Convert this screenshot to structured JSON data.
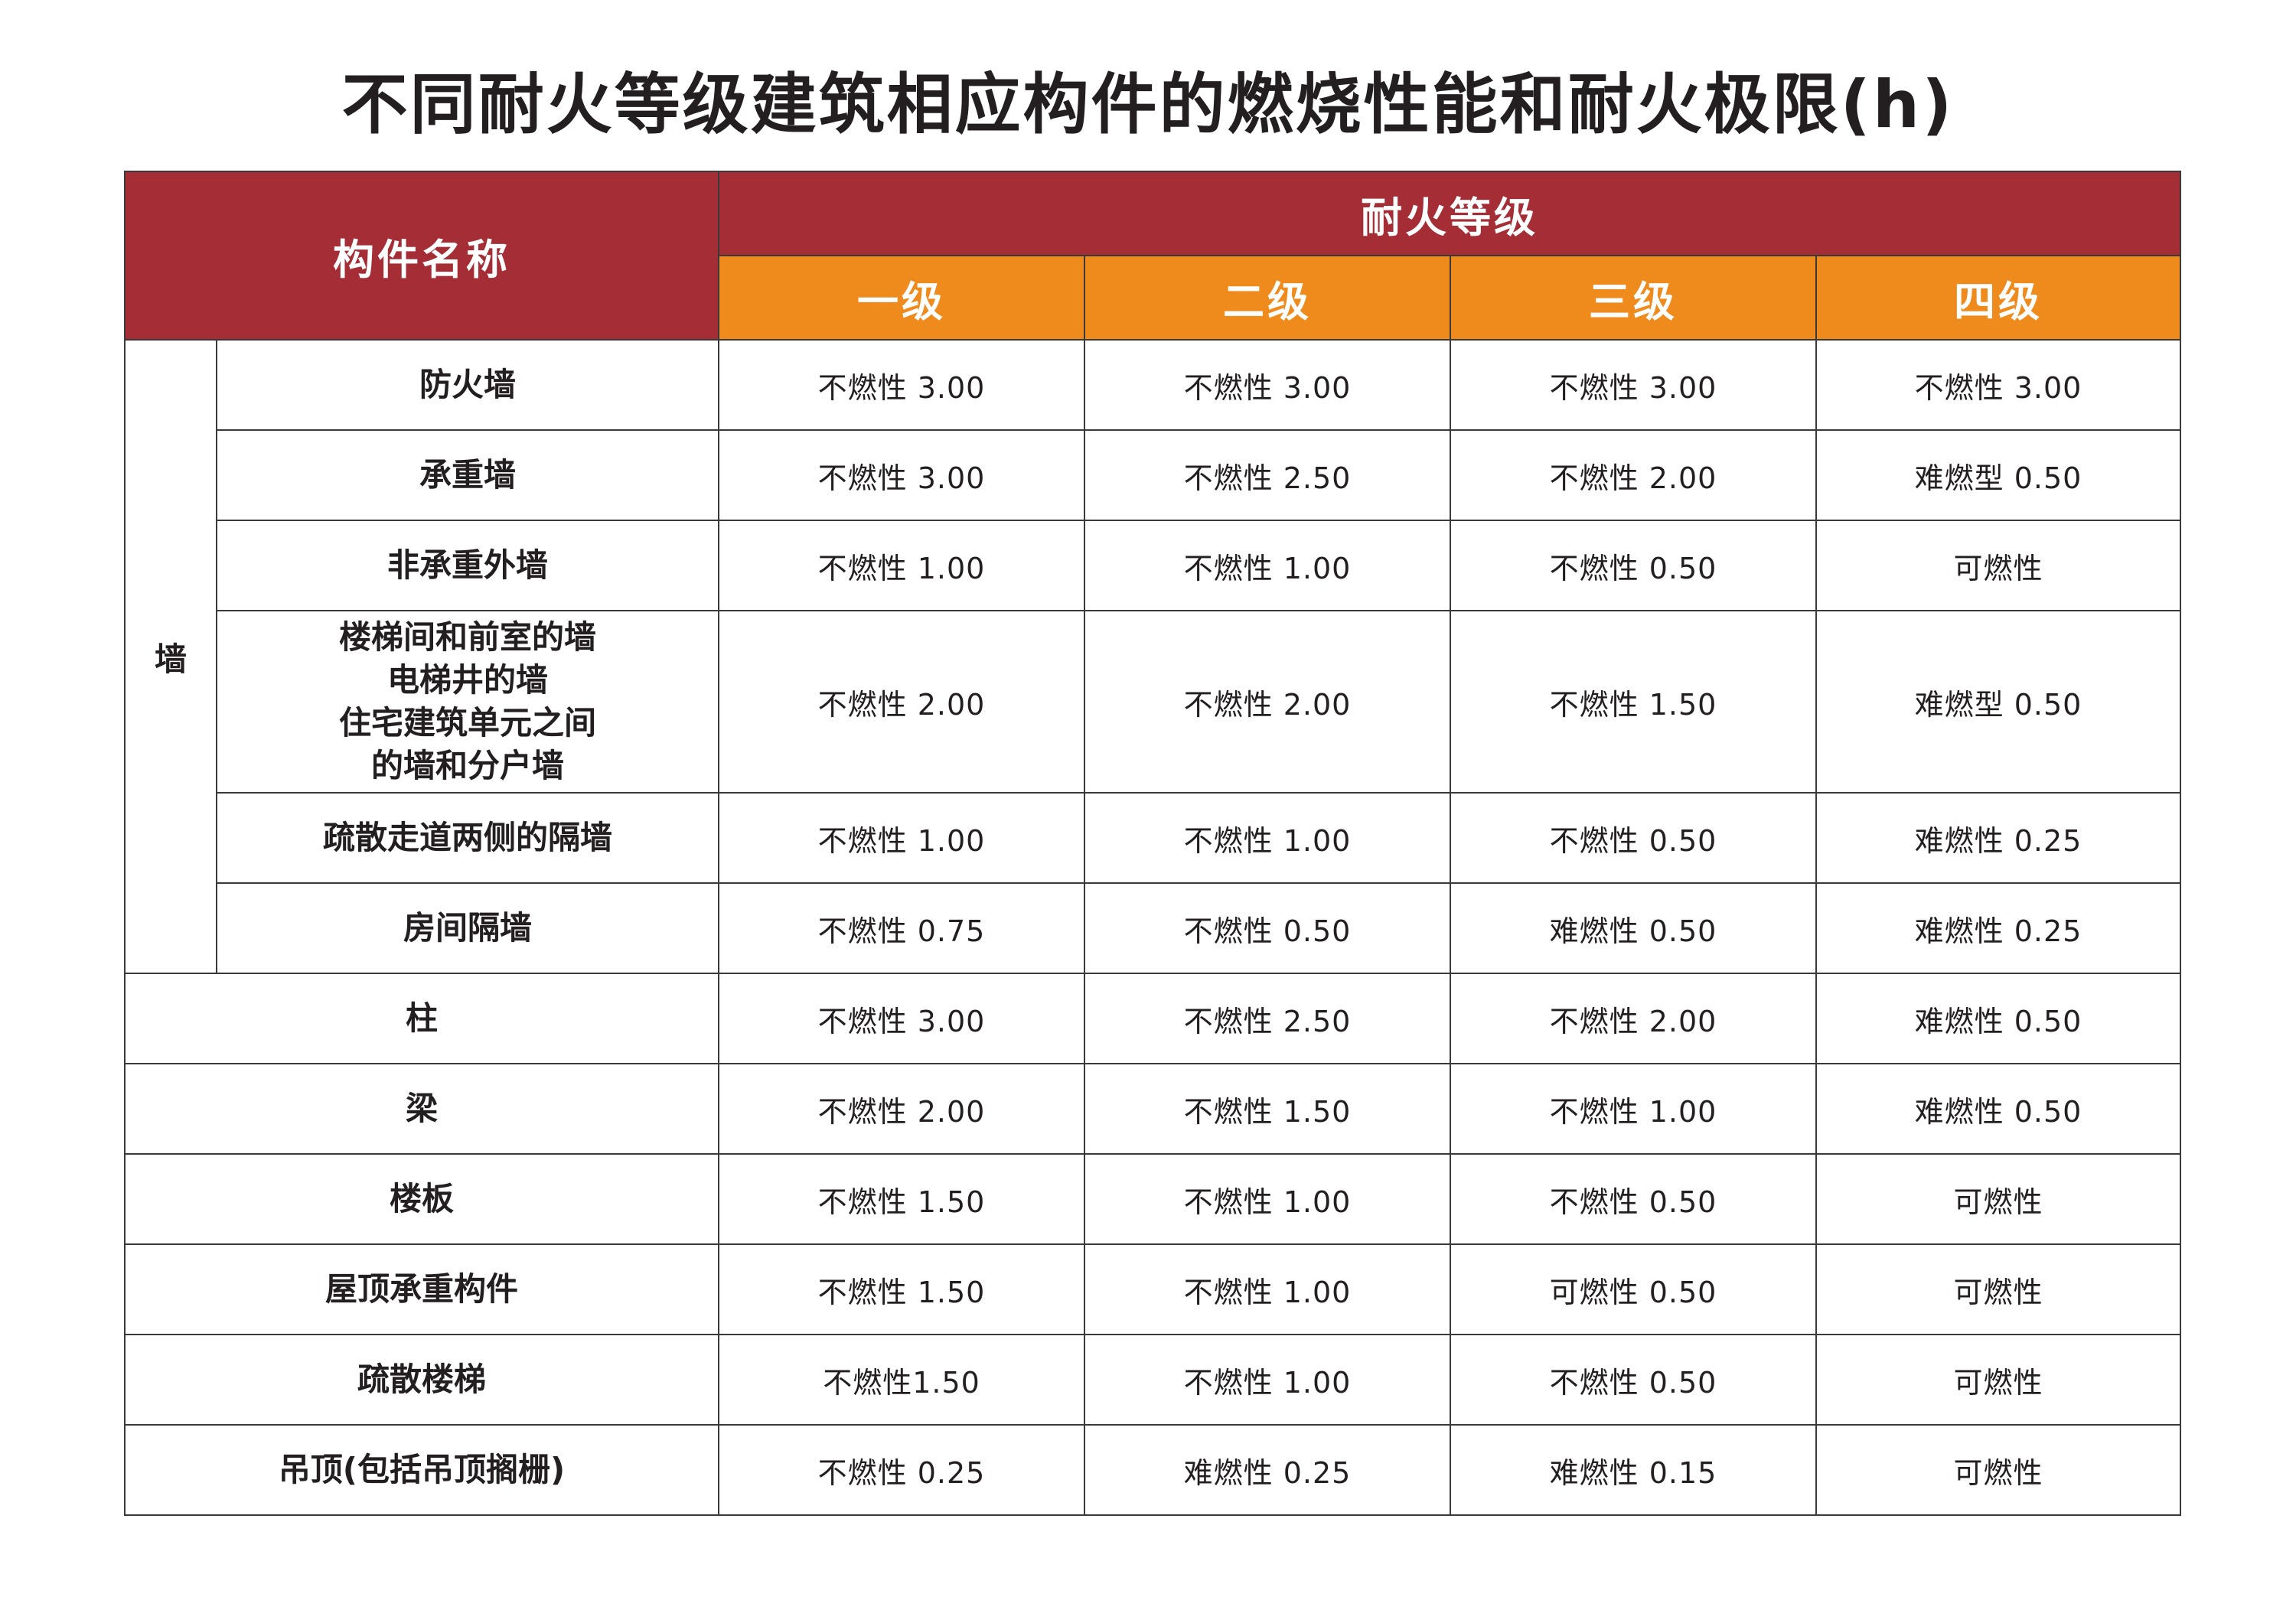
{
  "title": "不同耐火等级建筑相应构件的燃烧性能和耐火极限(h)",
  "header": {
    "component_name": "构件名称",
    "fire_rating": "耐火等级",
    "levels": [
      "一级",
      "二级",
      "三级",
      "四级"
    ]
  },
  "wall_group": "墙",
  "wall_rows": [
    {
      "name_lines": [
        "防火墙"
      ],
      "values": [
        "不燃性 3.00",
        "不燃性 3.00",
        "不燃性 3.00",
        "不燃性 3.00"
      ]
    },
    {
      "name_lines": [
        "承重墙"
      ],
      "values": [
        "不燃性 3.00",
        "不燃性 2.50",
        "不燃性 2.00",
        "难燃型 0.50"
      ]
    },
    {
      "name_lines": [
        "非承重外墙"
      ],
      "values": [
        "不燃性 1.00",
        "不燃性 1.00",
        "不燃性 0.50",
        "可燃性"
      ]
    },
    {
      "name_lines": [
        "楼梯间和前室的墙",
        "电梯井的墙",
        "住宅建筑单元之间",
        "的墙和分户墙"
      ],
      "values": [
        "不燃性 2.00",
        "不燃性 2.00",
        "不燃性 1.50",
        "难燃型 0.50"
      ]
    },
    {
      "name_lines": [
        "疏散走道两侧的隔墙"
      ],
      "values": [
        "不燃性 1.00",
        "不燃性 1.00",
        "不燃性 0.50",
        "难燃性 0.25"
      ]
    },
    {
      "name_lines": [
        "房间隔墙"
      ],
      "values": [
        "不燃性 0.75",
        "不燃性 0.50",
        "难燃性 0.50",
        "难燃性 0.25"
      ]
    }
  ],
  "other_rows": [
    {
      "name": "柱",
      "values": [
        "不燃性 3.00",
        "不燃性 2.50",
        "不燃性 2.00",
        "难燃性 0.50"
      ]
    },
    {
      "name": "梁",
      "values": [
        "不燃性 2.00",
        "不燃性 1.50",
        "不燃性 1.00",
        "难燃性 0.50"
      ]
    },
    {
      "name": "楼板",
      "values": [
        "不燃性 1.50",
        "不燃性 1.00",
        "不燃性 0.50",
        "可燃性"
      ]
    },
    {
      "name": "屋顶承重构件",
      "values": [
        "不燃性 1.50",
        "不燃性 1.00",
        "可燃性 0.50",
        "可燃性"
      ]
    },
    {
      "name": "疏散楼梯",
      "values": [
        "不燃性1.50",
        "不燃性 1.00",
        "不燃性 0.50",
        "可燃性"
      ]
    },
    {
      "name": "吊顶(包括吊顶搁栅)",
      "values": [
        "不燃性 0.25",
        "难燃性 0.25",
        "难燃性 0.15",
        "可燃性"
      ]
    }
  ],
  "colors": {
    "header_red": "#a42d36",
    "header_orange": "#ef8a1d",
    "border": "#3a3a3a",
    "text": "#231f20"
  }
}
